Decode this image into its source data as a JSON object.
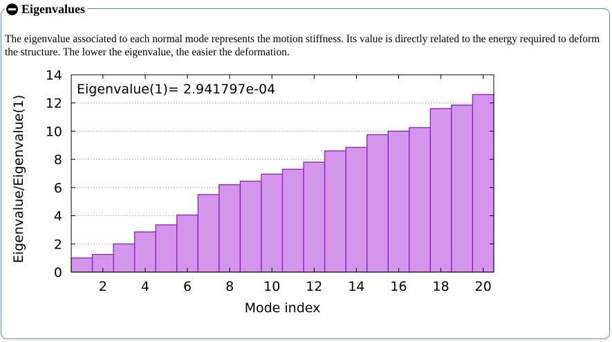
{
  "section": {
    "title": "Eigenvalues",
    "toggle_icon": "collapse-minus-icon",
    "description": "The eigenvalue associated to each normal mode represents the motion stiffness. Its value is directly related to the energy required to deform the structure. The lower the eigenvalue, the easier the deformation."
  },
  "colors": {
    "panel_border": "#5a8db8",
    "bar_fill": "#d595ec",
    "bar_stroke": "#8d1fc4"
  },
  "chart_data": {
    "type": "bar",
    "title": "Eigenvalue(1)= 2.941797e-04",
    "xlabel": "Mode index",
    "ylabel": "Eigenvalue/Eigenvalue(1)",
    "categories": [
      1,
      2,
      3,
      4,
      5,
      6,
      7,
      8,
      9,
      10,
      11,
      12,
      13,
      14,
      15,
      16,
      17,
      18,
      19,
      20
    ],
    "values": [
      1.0,
      1.25,
      2.0,
      2.85,
      3.35,
      4.05,
      5.5,
      6.2,
      6.45,
      6.95,
      7.3,
      7.8,
      8.6,
      8.85,
      9.75,
      10.0,
      10.25,
      11.6,
      11.85,
      12.6
    ],
    "xlim": [
      0.5,
      20.5
    ],
    "ylim": [
      0,
      14
    ],
    "xticks": [
      2,
      4,
      6,
      8,
      10,
      12,
      14,
      16,
      18,
      20
    ],
    "yticks": [
      0,
      2,
      4,
      6,
      8,
      10,
      12,
      14
    ],
    "grid": true,
    "legend": "none"
  }
}
